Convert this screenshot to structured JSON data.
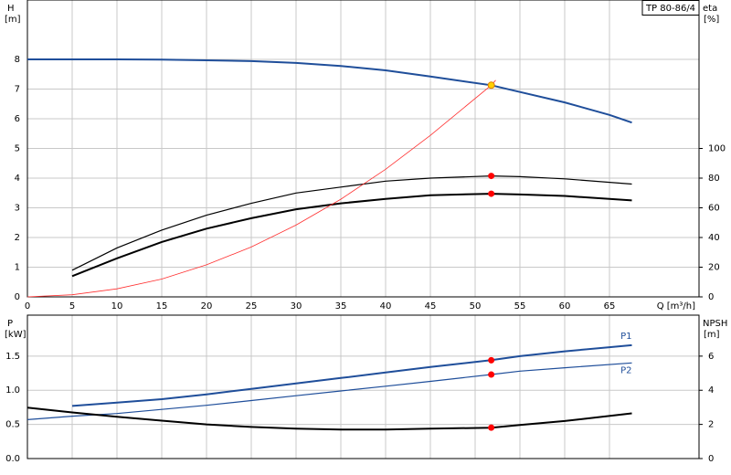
{
  "chart_data": [
    {
      "type": "line",
      "title": "TP 80-86/4",
      "y_label": "H",
      "y_unit": "[m]",
      "y2_label": "eta",
      "y2_unit": "[%]",
      "x_label": "Q [m³/h]",
      "xlim": [
        0,
        75
      ],
      "xticks": [
        0,
        5,
        10,
        15,
        20,
        25,
        30,
        35,
        40,
        45,
        50,
        55,
        60,
        65
      ],
      "ylim": [
        0,
        10
      ],
      "yticks": [
        0,
        1,
        2,
        3,
        4,
        5,
        6,
        7,
        8
      ],
      "y2lim": [
        0,
        200
      ],
      "y2ticks": [
        0,
        20,
        40,
        60,
        80,
        100
      ],
      "grid": true,
      "series": [
        {
          "color": "#1f4e9a",
          "line_width": 2,
          "x": [
            0,
            5,
            10,
            15,
            20,
            25,
            30,
            35,
            40,
            45,
            51.8,
            55,
            60,
            65,
            67.5
          ],
          "values": [
            8.0,
            8.0,
            8.0,
            7.99,
            7.97,
            7.94,
            7.88,
            7.78,
            7.63,
            7.42,
            7.13,
            6.9,
            6.55,
            6.13,
            5.87
          ]
        },
        {
          "color": "#000000",
          "line_width": 1.2,
          "axis": "y2",
          "x": [
            5,
            10,
            15,
            20,
            25,
            30,
            35,
            40,
            45,
            51.8,
            55,
            60,
            67.5
          ],
          "values": [
            18,
            33,
            45,
            55,
            63,
            70,
            74,
            78,
            80,
            81.5,
            81,
            79.5,
            76
          ]
        },
        {
          "color": "#000000",
          "line_width": 2,
          "axis": "y2",
          "x": [
            5,
            10,
            15,
            20,
            25,
            30,
            35,
            40,
            45,
            51.8,
            55,
            60,
            67.5
          ],
          "values": [
            14,
            26,
            37,
            46,
            53,
            59,
            63,
            66,
            68.5,
            69.5,
            69,
            68,
            65
          ]
        },
        {
          "color": "#ff3030",
          "line_width": 0.8,
          "x": [
            0,
            5,
            10,
            15,
            20,
            25,
            30,
            35,
            40,
            45,
            51.8,
            52.3
          ],
          "values": [
            0,
            0.07,
            0.27,
            0.6,
            1.08,
            1.68,
            2.42,
            3.29,
            4.3,
            5.44,
            7.13,
            7.3
          ]
        }
      ],
      "markers": [
        {
          "x": 51.8,
          "y": 7.13,
          "color": "#ffd000"
        },
        {
          "x": 51.8,
          "y": 81.5,
          "axis": "y2",
          "color": "#ff0000"
        },
        {
          "x": 51.8,
          "y": 69.5,
          "axis": "y2",
          "color": "#ff0000"
        }
      ]
    },
    {
      "type": "line",
      "y_label": "P",
      "y_unit": "[kW]",
      "y2_label": "NPSH",
      "y2_unit": "[m]",
      "xlim": [
        0,
        75
      ],
      "ylim": [
        0,
        2.1
      ],
      "yticks": [
        {
          "value": 0,
          "label": "0.0"
        },
        0.5,
        {
          "value": 1,
          "label": "1.0"
        },
        1.5
      ],
      "y2lim": [
        0,
        8.4
      ],
      "y2ticks": [
        0,
        2,
        4,
        6
      ],
      "grid": true,
      "series": [
        {
          "name": "P1",
          "color": "#1f4e9a",
          "line_width": 2,
          "x": [
            5,
            10,
            15,
            20,
            25,
            30,
            35,
            40,
            45,
            51.8,
            55,
            60,
            67.5
          ],
          "values": [
            0.77,
            0.82,
            0.87,
            0.94,
            1.02,
            1.1,
            1.18,
            1.26,
            1.34,
            1.44,
            1.5,
            1.57,
            1.66
          ]
        },
        {
          "name": "P2",
          "color": "#1f4e9a",
          "line_width": 1.2,
          "x": [
            0,
            5,
            10,
            15,
            20,
            25,
            30,
            35,
            40,
            45,
            51.8,
            55,
            60,
            67.5
          ],
          "values": [
            0.57,
            0.62,
            0.66,
            0.72,
            0.78,
            0.85,
            0.92,
            0.99,
            1.06,
            1.13,
            1.23,
            1.28,
            1.33,
            1.4
          ]
        },
        {
          "color": "#000000",
          "line_width": 2,
          "axis": "y2",
          "x": [
            0,
            5,
            10,
            15,
            20,
            25,
            30,
            35,
            40,
            45,
            51.8,
            55,
            60,
            67.5
          ],
          "values": [
            2.98,
            2.7,
            2.45,
            2.22,
            2.0,
            1.85,
            1.75,
            1.7,
            1.7,
            1.75,
            1.81,
            1.97,
            2.2,
            2.65
          ]
        }
      ],
      "markers": [
        {
          "x": 51.8,
          "y": 1.44,
          "color": "#ff0000"
        },
        {
          "x": 51.8,
          "y": 1.23,
          "color": "#ff0000"
        },
        {
          "x": 51.8,
          "y": 1.81,
          "axis": "y2",
          "color": "#ff0000"
        }
      ]
    }
  ]
}
